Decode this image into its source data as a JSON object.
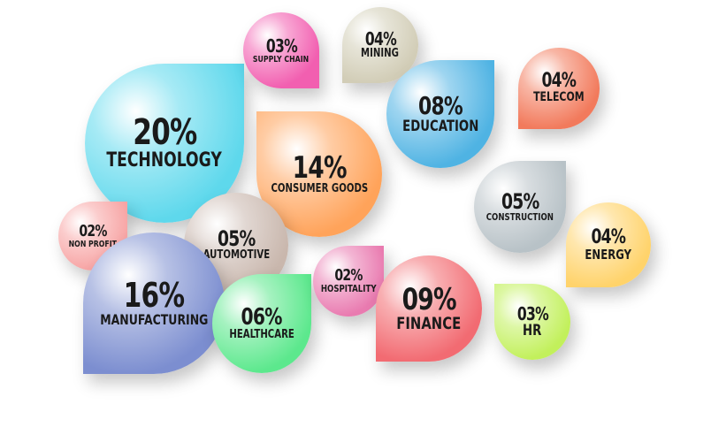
{
  "segments": [
    {
      "key": "technology",
      "pct": "20%",
      "label": "TECHNOLOGY",
      "color": "#5ed8ec"
    },
    {
      "key": "supply-chain",
      "pct": "03%",
      "label": "SUPPLY CHAIN",
      "color": "#f25fb0"
    },
    {
      "key": "mining",
      "pct": "04%",
      "label": "MINING",
      "color": "#d2cdb7"
    },
    {
      "key": "education",
      "pct": "08%",
      "label": "EDUCATION",
      "color": "#4fb3e3"
    },
    {
      "key": "telecom",
      "pct": "04%",
      "label": "TELECOM",
      "color": "#f27a5c"
    },
    {
      "key": "consumer-goods",
      "pct": "14%",
      "label": "CONSUMER GOODS",
      "color": "#ffa35a"
    },
    {
      "key": "construction",
      "pct": "05%",
      "label": "CONSTRUCTION",
      "color": "#b8c2c7"
    },
    {
      "key": "energy",
      "pct": "04%",
      "label": "ENERGY",
      "color": "#ffd36b"
    },
    {
      "key": "non-profit",
      "pct": "02%",
      "label": "NON PROFIT",
      "color": "#f7a4a4"
    },
    {
      "key": "automotive",
      "pct": "05%",
      "label": "AUTOMOTIVE",
      "color": "#c9b7ad"
    },
    {
      "key": "manufacturing",
      "pct": "16%",
      "label": "MANUFACTURING",
      "color": "#7c8ed0"
    },
    {
      "key": "healthcare",
      "pct": "06%",
      "label": "HEALTHCARE",
      "color": "#5ce88d"
    },
    {
      "key": "hospitality",
      "pct": "02%",
      "label": "HOSPITALITY",
      "color": "#e97bb0"
    },
    {
      "key": "finance",
      "pct": "09%",
      "label": "FINANCE",
      "color": "#f26b72"
    },
    {
      "key": "hr",
      "pct": "03%",
      "label": "HR",
      "color": "#c2f05b"
    }
  ]
}
